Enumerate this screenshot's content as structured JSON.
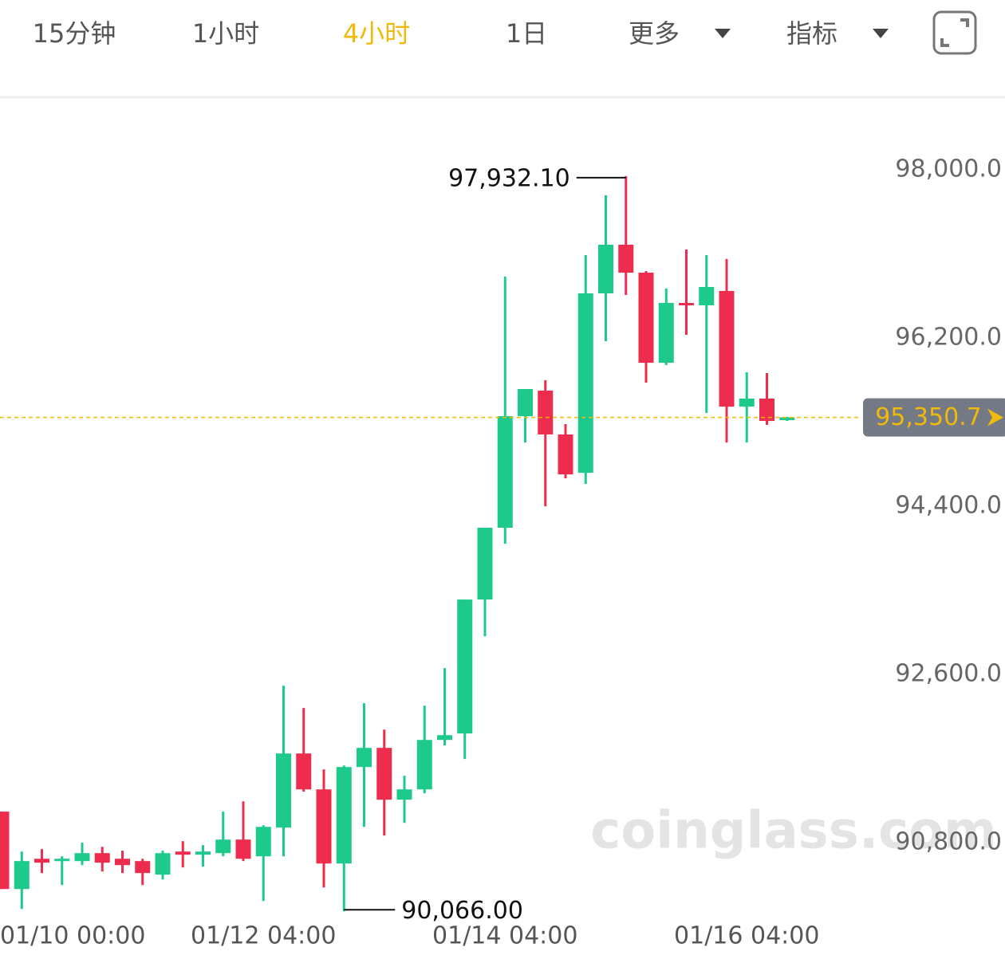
{
  "toolbar": {
    "tabs": [
      "15分钟",
      "1小时",
      "4小时",
      "1日",
      "更多",
      "指标"
    ],
    "active": 2
  },
  "chart_data": {
    "type": "candlestick",
    "categories": [
      "01/10 00:00",
      null,
      null,
      null,
      null,
      null,
      null,
      null,
      null,
      null,
      null,
      null,
      null,
      "01/12 04:00",
      null,
      null,
      null,
      null,
      null,
      null,
      null,
      null,
      null,
      null,
      null,
      "01/14 04:00",
      null,
      null,
      null,
      null,
      null,
      null,
      null,
      null,
      null,
      null,
      null,
      "01/16 04:00",
      null,
      null
    ],
    "open": [
      91133,
      90305,
      90629,
      90604,
      90604,
      90689,
      90629,
      90604,
      90459,
      90706,
      90672,
      90689,
      90834,
      90655,
      90962,
      91755,
      91371,
      90578,
      91610,
      91815,
      91261,
      91371,
      91900,
      91969,
      93402,
      94170,
      95364,
      95637,
      95168,
      94758,
      96678,
      97198,
      96899,
      95935,
      96575,
      96550,
      96703,
      95466,
      95552,
      95321
    ],
    "high": [
      91133,
      90706,
      90732,
      90655,
      90800,
      90757,
      90715,
      90629,
      90715,
      90817,
      90774,
      91133,
      91243,
      90987,
      92480,
      92242,
      91585,
      91627,
      92293,
      92011,
      91517,
      92267,
      92668,
      93402,
      94170,
      96857,
      95654,
      95748,
      95279,
      97087,
      97727,
      97932.1,
      96916,
      96729,
      97147,
      97087,
      97045,
      95833,
      95825,
      95356
    ],
    "low": [
      90305,
      90092,
      90476,
      90348,
      90561,
      90493,
      90476,
      90348,
      90407,
      90536,
      90544,
      90655,
      90604,
      90177,
      90655,
      91346,
      90322,
      90066,
      90970,
      90877,
      91013,
      91329,
      91841,
      91696,
      93009,
      93999,
      95082,
      94400,
      94699,
      94639,
      96166,
      96661,
      95722,
      95910,
      96234,
      95398,
      95082,
      95082,
      95270,
      95313
    ],
    "close": [
      90305,
      90604,
      90587,
      90629,
      90689,
      90587,
      90561,
      90476,
      90689,
      90672,
      90706,
      90834,
      90629,
      90970,
      91755,
      91371,
      90578,
      91610,
      91815,
      91261,
      91371,
      91900,
      91951,
      93402,
      94170,
      95364,
      95654,
      95168,
      94741,
      96678,
      97198,
      96899,
      95935,
      96575,
      96550,
      96746,
      95466,
      95552,
      95313,
      95350.7
    ],
    "up_color": "#1dc98b",
    "down_color": "#ee2c4e",
    "ylim": [
      90000,
      98750
    ],
    "yticks": [
      {
        "value": 98000,
        "label": "98,000.0"
      },
      {
        "value": 96200,
        "label": "96,200.0"
      },
      {
        "value": 94400,
        "label": "94,400.0"
      },
      {
        "value": 92600,
        "label": "92,600.0"
      },
      {
        "value": 90800,
        "label": "90,800.0"
      }
    ],
    "grid": false,
    "high_label": "97,932.10",
    "low_label": "90,066.00",
    "last_value": 95350.7,
    "last_label": "95,350.7",
    "last_color": "#f0b90b",
    "watermark": "coinglass.com"
  }
}
